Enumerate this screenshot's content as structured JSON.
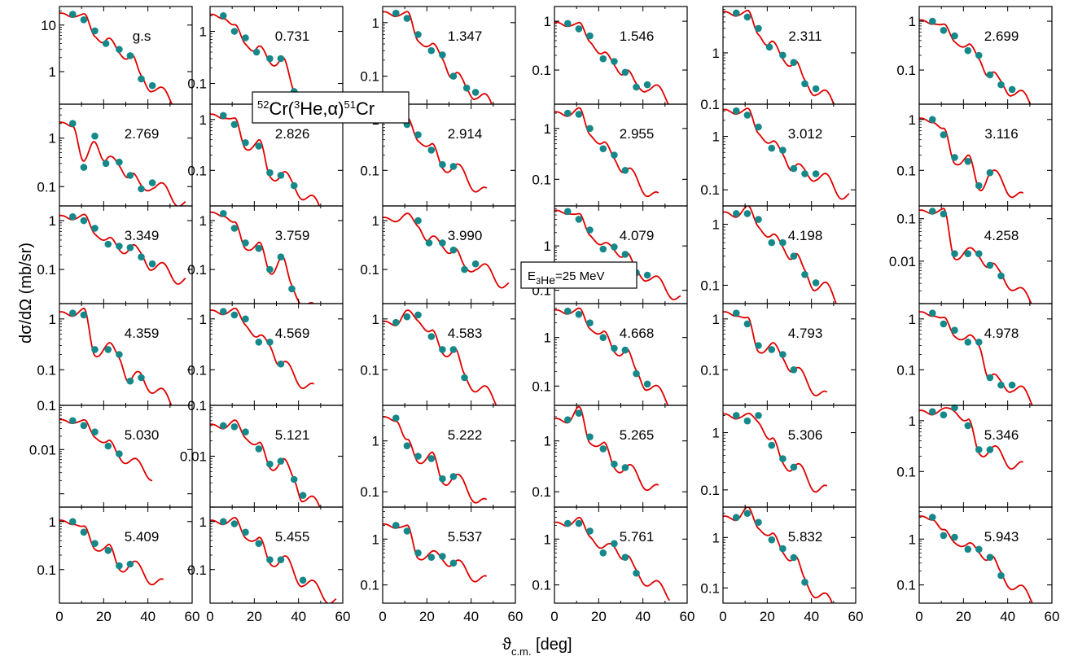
{
  "title_parts": {
    "sup1": "52",
    "cr1": "Cr(",
    "sup2": "3",
    "he": "He,",
    "alpha": "α",
    "close": ")",
    "sup3": "51",
    "cr2": "Cr"
  },
  "energy_label": {
    "base": "E",
    "sub": "3",
    "sub2": "He",
    "rest": "=25 MeV"
  },
  "axes": {
    "ylabel": "dσ/dΩ (mb/sr)",
    "xlabel_main": "ϑ",
    "xlabel_sub": "c.m.",
    "xlabel_unit": " [deg]"
  },
  "colors": {
    "fit": "#e00000",
    "data": "#15888a"
  },
  "x_ticks": [
    "0",
    "20",
    "40",
    "60"
  ],
  "chart_data": {
    "type": "scatter",
    "title": "52Cr(3He,α)51Cr",
    "xlabel": "ϑc.m. [deg]",
    "ylabel": "dσ/dΩ (mb/sr)",
    "xlim": [
      0,
      60
    ],
    "yscale": "log",
    "annotation": "E3He=25 MeV",
    "panels": [
      {
        "label": "g.s",
        "ylim": [
          0.2,
          25
        ],
        "ticks": [
          "10",
          "1"
        ],
        "x": [
          6,
          11,
          16,
          21,
          27,
          32,
          37,
          42
        ],
        "y": [
          17,
          13,
          7.5,
          4,
          3,
          2.2,
          0.7,
          0.5
        ]
      },
      {
        "label": "0.731",
        "ylim": [
          0.04,
          3
        ],
        "ticks": [
          "1",
          "0.1"
        ],
        "x": [
          6,
          11,
          16,
          21,
          27,
          32,
          38,
          43
        ],
        "y": [
          2,
          1,
          0.75,
          0.4,
          0.3,
          0.3,
          0.07,
          0.05
        ]
      },
      {
        "label": "1.347",
        "ylim": [
          0.03,
          2
        ],
        "ticks": [
          "1",
          "0.1"
        ],
        "x": [
          6,
          11,
          16,
          22,
          27,
          32,
          38,
          42
        ],
        "y": [
          1.5,
          1.2,
          0.6,
          0.3,
          0.25,
          0.1,
          0.06,
          0.05
        ]
      },
      {
        "label": "1.546",
        "ylim": [
          0.02,
          2
        ],
        "ticks": [
          "1",
          "0.1"
        ],
        "x": [
          6,
          11,
          16,
          22,
          27,
          32,
          37,
          42
        ],
        "y": [
          0.9,
          0.7,
          0.5,
          0.17,
          0.15,
          0.09,
          0.045,
          0.05
        ]
      },
      {
        "label": "2.311",
        "ylim": [
          0.1,
          8
        ],
        "ticks": [
          "1",
          "0.1"
        ],
        "x": [
          6,
          11,
          16,
          21,
          27,
          32,
          37,
          42
        ],
        "y": [
          6,
          5,
          3,
          1.3,
          0.9,
          0.65,
          0.25,
          0.2
        ]
      },
      {
        "label": "2.699",
        "ylim": [
          0.02,
          2
        ],
        "ticks": [
          "1",
          "0.1"
        ],
        "x": [
          6,
          11,
          16,
          22,
          27,
          32,
          37,
          42
        ],
        "y": [
          1,
          0.65,
          0.5,
          0.25,
          0.2,
          0.08,
          0.05,
          0.04
        ]
      },
      {
        "label": "2.769",
        "ylim": [
          0.04,
          5
        ],
        "ticks": [
          "1",
          "0.1"
        ],
        "x": [
          6,
          11,
          16,
          21,
          27,
          32,
          37,
          42
        ],
        "y": [
          2,
          0.25,
          1.1,
          0.3,
          0.32,
          0.17,
          0.09,
          0.12
        ]
      },
      {
        "label": "2.826",
        "ylim": [
          0.02,
          2
        ],
        "ticks": [
          "1",
          "0.1"
        ],
        "x": [
          6,
          11,
          16,
          22,
          27,
          32,
          38
        ],
        "y": [
          1.2,
          0.8,
          0.35,
          0.3,
          0.09,
          0.08,
          0.05
        ]
      },
      {
        "label": "2.914",
        "ylim": [
          0.02,
          2
        ],
        "ticks": [
          "1",
          "0.1"
        ],
        "x": [
          6,
          11,
          16,
          22,
          27,
          32
        ],
        "y": [
          1.5,
          0.8,
          0.5,
          0.25,
          0.13,
          0.12
        ]
      },
      {
        "label": "2.955",
        "ylim": [
          0.03,
          3
        ],
        "ticks": [
          "1",
          "0.1"
        ],
        "x": [
          6,
          11,
          16,
          22,
          27,
          32
        ],
        "y": [
          2,
          1.9,
          1,
          0.4,
          0.3,
          0.15
        ]
      },
      {
        "label": "3.012",
        "ylim": [
          0.05,
          4
        ],
        "ticks": [
          "1",
          "0.1"
        ],
        "x": [
          6,
          11,
          16,
          22,
          27,
          32,
          37,
          42
        ],
        "y": [
          3,
          2.5,
          1.5,
          0.6,
          0.55,
          0.25,
          0.2,
          0.2
        ]
      },
      {
        "label": "3.116",
        "ylim": [
          0.02,
          2
        ],
        "ticks": [
          "1",
          "0.1"
        ],
        "x": [
          6,
          11,
          16,
          22,
          27,
          32
        ],
        "y": [
          1,
          0.5,
          0.18,
          0.15,
          0.05,
          0.09
        ]
      },
      {
        "label": "3.349",
        "ylim": [
          0.02,
          2
        ],
        "ticks": [
          "1",
          "0.1"
        ],
        "x": [
          6,
          11,
          16,
          22,
          27,
          32,
          37,
          42
        ],
        "y": [
          1.2,
          1,
          0.7,
          0.33,
          0.3,
          0.28,
          0.18,
          0.13
        ]
      },
      {
        "label": "3.759",
        "ylim": [
          0.02,
          2
        ],
        "ticks": [
          "1",
          "0.1"
        ],
        "x": [
          6,
          11,
          16,
          22,
          27,
          32,
          37
        ],
        "y": [
          1.4,
          0.7,
          0.35,
          0.27,
          0.1,
          0.18,
          0.04
        ]
      },
      {
        "label": "3.990",
        "ylim": [
          0.02,
          2
        ],
        "ticks": [
          "1",
          "0.1"
        ],
        "x": [
          16,
          21,
          27,
          32,
          37,
          42
        ],
        "y": [
          1,
          0.35,
          0.35,
          0.25,
          0.1,
          0.13
        ]
      },
      {
        "label": "4.079",
        "ylim": [
          0.05,
          8
        ],
        "ticks": [
          "1",
          "0.1"
        ],
        "x": [
          6,
          11,
          16,
          22,
          27,
          32,
          37,
          42
        ],
        "y": [
          6,
          4,
          2.3,
          0.85,
          0.95,
          0.65,
          0.25,
          0.22
        ]
      },
      {
        "label": "4.198",
        "ylim": [
          0.05,
          2
        ],
        "ticks": [
          "1",
          "0.1"
        ],
        "x": [
          6,
          11,
          16,
          22,
          27,
          32,
          37,
          42
        ],
        "y": [
          1.5,
          1.5,
          1.2,
          0.5,
          0.5,
          0.3,
          0.15,
          0.11
        ]
      },
      {
        "label": "4.258",
        "ylim": [
          0.01,
          2
        ],
        "ticks": [
          "0.1",
          "0.01"
        ],
        "x": [
          6,
          11,
          16,
          22,
          27,
          32,
          37
        ],
        "y": [
          1.5,
          1.3,
          0.15,
          0.15,
          0.15,
          0.08,
          0.045
        ]
      },
      {
        "label": "4.359",
        "ylim": [
          0.02,
          2
        ],
        "ticks": [
          "1",
          "0.1"
        ],
        "x": [
          6,
          11,
          16,
          22,
          27,
          32,
          37
        ],
        "y": [
          1.3,
          1.2,
          0.25,
          0.25,
          0.2,
          0.06,
          0.07
        ]
      },
      {
        "label": "4.569",
        "ylim": [
          0.02,
          2
        ],
        "ticks": [
          "1",
          "0.1"
        ],
        "x": [
          6,
          11,
          16,
          22,
          27,
          32
        ],
        "y": [
          1.4,
          1.2,
          1,
          0.35,
          0.35,
          0.13
        ]
      },
      {
        "label": "4.583",
        "ylim": [
          0.02,
          2
        ],
        "ticks": [
          "1",
          "0.1"
        ],
        "x": [
          6,
          11,
          16,
          22,
          27,
          32,
          37
        ],
        "y": [
          0.85,
          1.1,
          1.2,
          0.45,
          0.25,
          0.25,
          0.07
        ]
      },
      {
        "label": "4.668",
        "ylim": [
          0.04,
          5
        ],
        "ticks": [
          "1",
          "0.1"
        ],
        "x": [
          6,
          11,
          16,
          22,
          27,
          32,
          37,
          42
        ],
        "y": [
          3.5,
          3,
          2,
          1,
          0.6,
          0.55,
          0.18,
          0.11
        ]
      },
      {
        "label": "4.793",
        "ylim": [
          0.02,
          2
        ],
        "ticks": [
          "1",
          "0.1"
        ],
        "x": [
          6,
          11,
          16,
          22,
          27,
          32
        ],
        "y": [
          1.3,
          0.8,
          0.3,
          0.25,
          0.2,
          0.1
        ]
      },
      {
        "label": "4.978",
        "ylim": [
          0.02,
          2
        ],
        "ticks": [
          "1",
          "0.1"
        ],
        "x": [
          6,
          11,
          16,
          22,
          27,
          32,
          37,
          42
        ],
        "y": [
          1.3,
          0.8,
          0.6,
          0.35,
          0.35,
          0.07,
          0.05,
          0.05
        ]
      },
      {
        "label": "5.030",
        "ylim": [
          0.005,
          1
        ],
        "ticks": [
          "0.1",
          "0.01"
        ],
        "x": [
          6,
          11,
          16,
          22,
          27
        ],
        "y": [
          0.45,
          0.35,
          0.25,
          0.12,
          0.08
        ]
      },
      {
        "label": "5.121",
        "ylim": [
          0.01,
          1
        ],
        "ticks": [
          "0.1",
          "0.01"
        ],
        "x": [
          6,
          11,
          16,
          22,
          27,
          32,
          38,
          42
        ],
        "y": [
          0.4,
          0.38,
          0.3,
          0.14,
          0.07,
          0.08,
          0.035,
          0.017
        ]
      },
      {
        "label": "5.222",
        "ylim": [
          0.05,
          5
        ],
        "ticks": [
          "1",
          "0.1"
        ],
        "x": [
          6,
          11,
          16,
          22,
          27,
          32
        ],
        "y": [
          2.8,
          0.8,
          0.5,
          0.45,
          0.18,
          0.2
        ]
      },
      {
        "label": "5.265",
        "ylim": [
          0.05,
          5
        ],
        "ticks": [
          "1",
          "0.1"
        ],
        "x": [
          6,
          11,
          16,
          22,
          27,
          32
        ],
        "y": [
          2.6,
          3.5,
          1.2,
          0.7,
          0.35,
          0.3
        ]
      },
      {
        "label": "5.306",
        "ylim": [
          0.05,
          3
        ],
        "ticks": [
          "1",
          "0.1"
        ],
        "x": [
          6,
          11,
          16,
          22,
          27,
          32
        ],
        "y": [
          2,
          1.6,
          2,
          0.6,
          0.35,
          0.25
        ]
      },
      {
        "label": "5.346",
        "ylim": [
          0.02,
          2
        ],
        "ticks": [
          "1",
          "0.1"
        ],
        "x": [
          6,
          11,
          16,
          22,
          27,
          32
        ],
        "y": [
          1.5,
          1.3,
          2,
          0.8,
          0.27,
          0.27
        ]
      },
      {
        "label": "5.409",
        "ylim": [
          0.02,
          2
        ],
        "ticks": [
          "1",
          "0.1"
        ],
        "x": [
          6,
          11,
          16,
          22,
          27,
          32
        ],
        "y": [
          1,
          0.6,
          0.35,
          0.25,
          0.12,
          0.13
        ]
      },
      {
        "label": "5.455",
        "ylim": [
          0.02,
          2
        ],
        "ticks": [
          "1",
          "0.1"
        ],
        "x": [
          6,
          11,
          16,
          22,
          27,
          32,
          42
        ],
        "y": [
          1,
          0.9,
          0.6,
          0.35,
          0.16,
          0.16,
          0.06
        ]
      },
      {
        "label": "5.537",
        "ylim": [
          0.04,
          5
        ],
        "ticks": [
          "1",
          "0.1"
        ],
        "x": [
          6,
          11,
          16,
          22,
          27,
          32
        ],
        "y": [
          2,
          1.5,
          0.5,
          0.4,
          0.42,
          0.3
        ]
      },
      {
        "label": "5.761",
        "ylim": [
          0.04,
          5
        ],
        "ticks": [
          "1",
          "0.1"
        ],
        "x": [
          6,
          11,
          16,
          22,
          27,
          32,
          37
        ],
        "y": [
          2.2,
          2.2,
          1.5,
          0.5,
          0.8,
          0.4,
          0.18
        ]
      },
      {
        "label": "5.832",
        "ylim": [
          0.05,
          4
        ],
        "ticks": [
          "1",
          "0.1"
        ],
        "x": [
          6,
          11,
          16,
          22,
          27,
          32,
          37
        ],
        "y": [
          2.5,
          3,
          2,
          0.9,
          0.6,
          0.4,
          0.13
        ]
      },
      {
        "label": "5.943",
        "ylim": [
          0.04,
          5
        ],
        "ticks": [
          "1",
          "0.1"
        ],
        "x": [
          6,
          11,
          16,
          22,
          27,
          32,
          37
        ],
        "y": [
          3,
          1.2,
          1.1,
          0.6,
          0.6,
          0.4,
          0.16
        ]
      }
    ]
  }
}
